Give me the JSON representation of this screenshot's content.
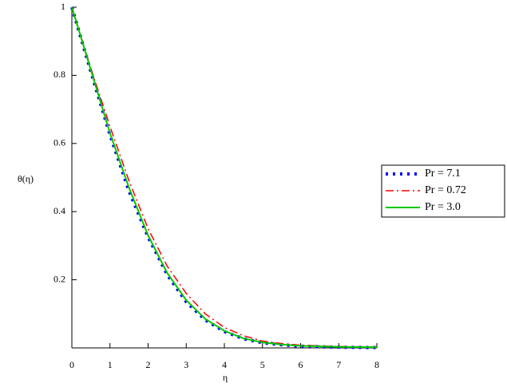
{
  "chart_data": {
    "type": "line",
    "xlabel": "η",
    "ylabel": "θ(η)",
    "x": [
      0,
      0.5,
      1,
      1.5,
      2,
      2.5,
      3,
      3.5,
      4,
      4.5,
      5,
      5.5,
      6,
      7,
      8
    ],
    "series": [
      {
        "name": "Pr = 7.1",
        "color": "#0000ff",
        "style": "dotted",
        "values": [
          1,
          0.81,
          0.625,
          0.46,
          0.325,
          0.215,
          0.135,
          0.082,
          0.048,
          0.027,
          0.015,
          0.009,
          0.005,
          0.002,
          0.001
        ]
      },
      {
        "name": "Pr = 0.72",
        "color": "#ff0000",
        "style": "dashdot",
        "values": [
          1,
          0.82,
          0.65,
          0.49,
          0.35,
          0.24,
          0.16,
          0.1,
          0.06,
          0.036,
          0.02,
          0.013,
          0.008,
          0.004,
          0.003
        ]
      },
      {
        "name": "Pr = 3.0",
        "color": "#00c800",
        "style": "solid",
        "values": [
          1,
          0.815,
          0.63,
          0.47,
          0.33,
          0.22,
          0.14,
          0.085,
          0.05,
          0.028,
          0.016,
          0.01,
          0.006,
          0.003,
          0.002
        ]
      }
    ],
    "xlim": [
      0,
      8
    ],
    "xticks": [
      0,
      1,
      2,
      3,
      4,
      5,
      6,
      7,
      8
    ],
    "ylim": [
      0,
      1
    ],
    "yticks": [
      0.2,
      0.4,
      0.6,
      0.8,
      1
    ],
    "legend": "right"
  }
}
